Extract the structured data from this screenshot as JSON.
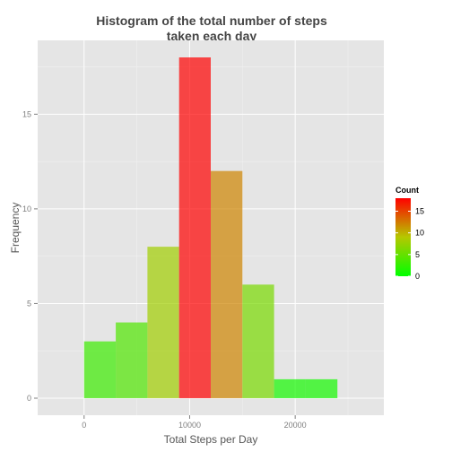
{
  "chart_data": {
    "type": "bar",
    "title_lines": [
      "Histogram of the total number of steps",
      "taken each day"
    ],
    "xlabel": "Total Steps per Day",
    "ylabel": "Frequency",
    "bin_edges": [
      0,
      3000,
      6000,
      9000,
      12000,
      15000,
      18000,
      21000,
      24000
    ],
    "counts": [
      3,
      4,
      8,
      18,
      12,
      6,
      1,
      1
    ],
    "xlim": [
      -4400,
      28400
    ],
    "ylim": [
      -0.9,
      18.9
    ],
    "x_ticks": [
      0,
      10000,
      20000
    ],
    "x_tick_labels": [
      "0",
      "10000",
      "20000"
    ],
    "y_ticks": [
      0,
      5,
      10,
      15
    ],
    "y_tick_labels": [
      "0",
      "5",
      "10",
      "15"
    ],
    "grid": true,
    "legend": {
      "title": "Count",
      "position": "right",
      "ticks": [
        0,
        5,
        10,
        15
      ],
      "tick_labels": [
        "0",
        "5",
        "10",
        "15"
      ],
      "range": [
        0,
        18
      ]
    },
    "colors": {
      "low": "#00ff00",
      "mid": "#b5c800",
      "high": "#ff0000",
      "bar_alpha": 0.7,
      "panel_background": "#e5e5e5",
      "grid_major": "#ffffff",
      "grid_minor": "#f2f2f2"
    }
  }
}
